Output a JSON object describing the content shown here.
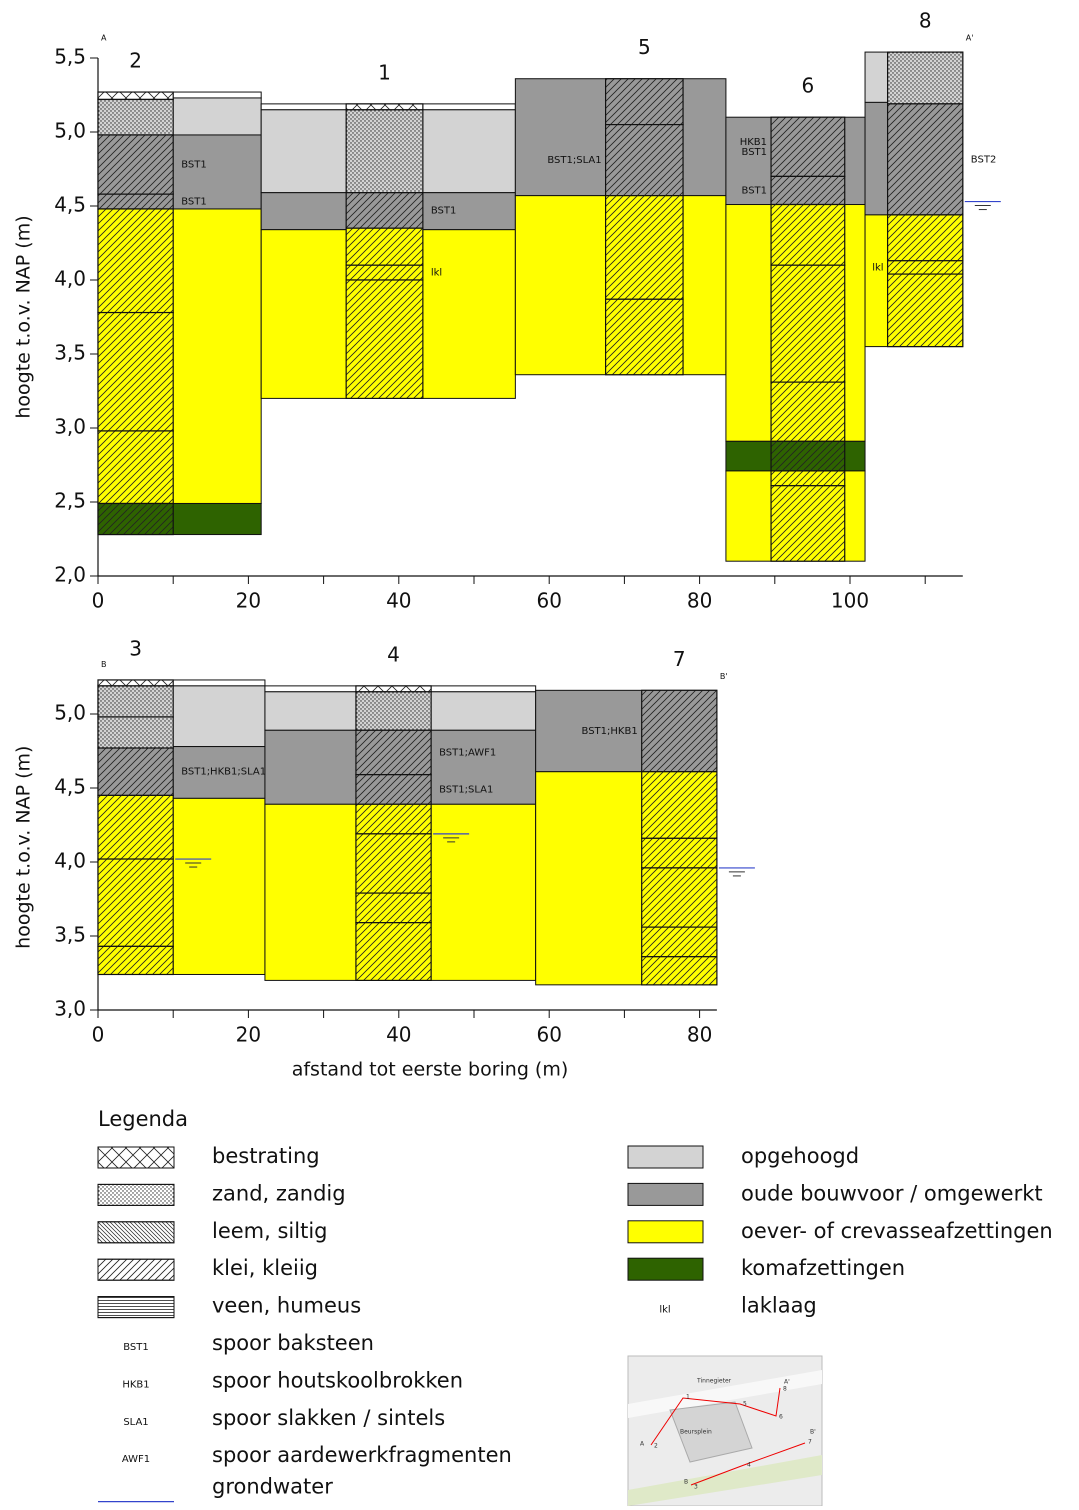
{
  "panels": [
    {
      "y_label": "hoogte t.o.v. NAP (m)",
      "section_start": "A",
      "section_end": "A'",
      "xlim": [
        0,
        115
      ],
      "ylim": [
        2.0,
        5.5
      ],
      "xticks": [
        0,
        20,
        40,
        60,
        80,
        100
      ],
      "xminor_ticks": [
        10,
        30,
        50,
        70,
        90,
        110
      ],
      "yticks": [
        {
          "value": 2.0,
          "label": "2,0"
        },
        {
          "value": 2.5,
          "label": "2,5"
        },
        {
          "value": 3.0,
          "label": "3,0"
        },
        {
          "value": 3.5,
          "label": "3,5"
        },
        {
          "value": 4.0,
          "label": "4,0"
        },
        {
          "value": 4.5,
          "label": "4,5"
        },
        {
          "value": 5.0,
          "label": "5,0"
        },
        {
          "value": 5.5,
          "label": "5,5"
        }
      ],
      "boreholes": [
        {
          "label": "2",
          "zone_x": [
            0,
            21.7
          ],
          "core_x": [
            0,
            10
          ],
          "zone": [
            {
              "unit": null,
              "top": 5.27,
              "bottom": 5.23
            },
            {
              "unit": "opgehoogd",
              "top": 5.23,
              "bottom": 4.98
            },
            {
              "unit": "oude bouwvoor / omgewerkt",
              "top": 4.98,
              "bottom": 4.48
            },
            {
              "unit": "oever- of crevasseafzettingen",
              "top": 4.48,
              "bottom": 2.49
            },
            {
              "unit": "komafzettingen",
              "top": 2.49,
              "bottom": 2.28
            }
          ],
          "core": [
            {
              "litho": "bestrating",
              "top": 5.27,
              "bottom": 5.22
            },
            {
              "litho": "zand, zandig",
              "top": 5.22,
              "bottom": 4.98
            },
            {
              "litho": "klei, kleiig",
              "top": 4.98,
              "bottom": 4.58,
              "notes": [
                "BST1"
              ]
            },
            {
              "litho": "klei, kleiig",
              "top": 4.58,
              "bottom": 4.48,
              "notes": [
                "BST1"
              ]
            },
            {
              "litho": "klei, kleiig",
              "top": 4.48,
              "bottom": 3.78
            },
            {
              "litho": "klei, kleiig",
              "top": 3.78,
              "bottom": 2.98
            },
            {
              "litho": "klei, kleiig",
              "top": 2.98,
              "bottom": 2.49
            },
            {
              "litho": "klei, kleiig",
              "top": 2.49,
              "bottom": 2.28
            }
          ]
        },
        {
          "label": "1",
          "zone_x": [
            21.7,
            55.5
          ],
          "core_x": [
            33,
            43.2
          ],
          "zone": [
            {
              "unit": null,
              "top": 5.19,
              "bottom": 5.15
            },
            {
              "unit": "opgehoogd",
              "top": 5.15,
              "bottom": 4.59
            },
            {
              "unit": "oude bouwvoor / omgewerkt",
              "top": 4.59,
              "bottom": 4.34
            },
            {
              "unit": "oever- of crevasseafzettingen",
              "top": 4.34,
              "bottom": 3.2
            }
          ],
          "core": [
            {
              "litho": "bestrating",
              "top": 5.19,
              "bottom": 5.15
            },
            {
              "litho": "zand, zandig",
              "top": 5.15,
              "bottom": 4.59
            },
            {
              "litho": "klei, kleiig",
              "top": 4.59,
              "bottom": 4.35,
              "notes": [
                "BST1"
              ]
            },
            {
              "litho": "klei, kleiig",
              "top": 4.35,
              "bottom": 4.1
            },
            {
              "litho": "klei, kleiig",
              "top": 4.1,
              "bottom": 4.0,
              "notes": [
                "lkl"
              ]
            },
            {
              "litho": "klei, kleiig",
              "top": 4.0,
              "bottom": 3.2
            }
          ]
        },
        {
          "label": "5",
          "zone_x": [
            55.5,
            83.5
          ],
          "core_x": [
            67.5,
            77.8
          ],
          "zone": [
            {
              "unit": "oude bouwvoor / omgewerkt",
              "top": 5.36,
              "bottom": 4.57
            },
            {
              "unit": "oever- of crevasseafzettingen",
              "top": 4.57,
              "bottom": 3.36
            }
          ],
          "core": [
            {
              "litho": "klei, kleiig",
              "top": 5.36,
              "bottom": 5.05
            },
            {
              "litho": "klei, kleiig",
              "top": 5.05,
              "bottom": 4.57,
              "notes": [
                "BST1;SLA1"
              ],
              "note_side": "left"
            },
            {
              "litho": "klei, kleiig",
              "top": 4.57,
              "bottom": 3.87
            },
            {
              "litho": "klei, kleiig",
              "top": 3.87,
              "bottom": 3.36
            }
          ]
        },
        {
          "label": "6",
          "zone_x": [
            83.5,
            102
          ],
          "core_x": [
            89.5,
            99.3
          ],
          "zone": [
            {
              "unit": "oude bouwvoor / omgewerkt",
              "top": 5.1,
              "bottom": 4.51
            },
            {
              "unit": "oever- of crevasseafzettingen",
              "top": 4.51,
              "bottom": 2.91
            },
            {
              "unit": "komafzettingen",
              "top": 2.91,
              "bottom": 2.71
            },
            {
              "unit": "oever- of crevasseafzettingen",
              "top": 2.71,
              "bottom": 2.1
            }
          ],
          "core": [
            {
              "litho": "klei, kleiig",
              "top": 5.1,
              "bottom": 4.7,
              "notes": [
                "HKB1",
                "BST1"
              ],
              "note_side": "left"
            },
            {
              "litho": "klei, kleiig",
              "top": 4.7,
              "bottom": 4.51,
              "notes": [
                "BST1"
              ],
              "note_side": "left"
            },
            {
              "litho": "klei, kleiig",
              "top": 4.51,
              "bottom": 4.1
            },
            {
              "litho": "klei, kleiig",
              "top": 4.1,
              "bottom": 3.31
            },
            {
              "litho": "klei, kleiig",
              "top": 3.31,
              "bottom": 2.91
            },
            {
              "litho": "klei, kleiig",
              "top": 2.91,
              "bottom": 2.71
            },
            {
              "litho": "klei, kleiig",
              "top": 2.71,
              "bottom": 2.61
            },
            {
              "litho": "klei, kleiig",
              "top": 2.61,
              "bottom": 2.1
            }
          ]
        },
        {
          "label": "8",
          "zone_x": [
            102,
            115
          ],
          "core_x": [
            105,
            115
          ],
          "groundwater": 4.53,
          "zone": [
            {
              "unit": "opgehoogd",
              "top": 5.54,
              "bottom": 5.2
            },
            {
              "unit": "oude bouwvoor / omgewerkt",
              "top": 5.2,
              "bottom": 4.44
            },
            {
              "unit": "oever- of crevasseafzettingen",
              "top": 4.44,
              "bottom": 3.55
            }
          ],
          "core": [
            {
              "litho": "zand, zandig",
              "top": 5.54,
              "bottom": 5.19
            },
            {
              "litho": "klei, kleiig",
              "top": 5.19,
              "bottom": 4.44,
              "notes": [
                "BST2"
              ]
            },
            {
              "litho": "klei, kleiig",
              "top": 4.44,
              "bottom": 4.13
            },
            {
              "litho": "klei, kleiig",
              "top": 4.13,
              "bottom": 4.04,
              "notes": [
                "lkl"
              ],
              "note_side": "left"
            },
            {
              "litho": "klei, kleiig",
              "top": 4.04,
              "bottom": 3.55
            }
          ]
        }
      ]
    },
    {
      "y_label": "hoogte t.o.v. NAP (m)",
      "x_label": "afstand tot eerste boring (m)",
      "section_start": "B",
      "section_end": "B'",
      "xlim": [
        0,
        82.3
      ],
      "ylim": [
        3.0,
        5.2
      ],
      "xticks": [
        0,
        20,
        40,
        60,
        80
      ],
      "xminor_ticks": [
        10,
        30,
        50,
        70
      ],
      "yticks": [
        {
          "value": 3.0,
          "label": "3,0"
        },
        {
          "value": 3.5,
          "label": "3,5"
        },
        {
          "value": 4.0,
          "label": "4,0"
        },
        {
          "value": 4.5,
          "label": "4,5"
        },
        {
          "value": 5.0,
          "label": "5,0"
        }
      ],
      "boreholes": [
        {
          "label": "3",
          "zone_x": [
            0,
            22.2
          ],
          "core_x": [
            0,
            10
          ],
          "groundwater": 4.02,
          "zone": [
            {
              "unit": null,
              "top": 5.23,
              "bottom": 5.19
            },
            {
              "unit": "opgehoogd",
              "top": 5.19,
              "bottom": 4.78
            },
            {
              "unit": "oude bouwvoor / omgewerkt",
              "top": 4.78,
              "bottom": 4.43
            },
            {
              "unit": "oever- of crevasseafzettingen",
              "top": 4.43,
              "bottom": 3.24
            }
          ],
          "core": [
            {
              "litho": "bestrating",
              "top": 5.23,
              "bottom": 5.19
            },
            {
              "litho": "zand, zandig",
              "top": 5.19,
              "bottom": 4.98
            },
            {
              "litho": "zand, zandig",
              "top": 4.98,
              "bottom": 4.77
            },
            {
              "litho": "klei, kleiig",
              "top": 4.77,
              "bottom": 4.45,
              "notes": [
                "BST1;HKB1;SLA1"
              ]
            },
            {
              "litho": "klei, kleiig",
              "top": 4.45,
              "bottom": 4.02
            },
            {
              "litho": "klei, kleiig",
              "top": 4.02,
              "bottom": 3.43
            },
            {
              "litho": "klei, kleiig",
              "top": 3.43,
              "bottom": 3.24
            }
          ]
        },
        {
          "label": "4",
          "zone_x": [
            22.2,
            58.2
          ],
          "core_x": [
            34.3,
            44.3
          ],
          "groundwater": 4.19,
          "zone": [
            {
              "unit": null,
              "top": 5.19,
              "bottom": 5.15
            },
            {
              "unit": "opgehoogd",
              "top": 5.15,
              "bottom": 4.89
            },
            {
              "unit": "oude bouwvoor / omgewerkt",
              "top": 4.89,
              "bottom": 4.39
            },
            {
              "unit": "oever- of crevasseafzettingen",
              "top": 4.39,
              "bottom": 3.2
            }
          ],
          "core": [
            {
              "litho": "bestrating",
              "top": 5.19,
              "bottom": 5.15
            },
            {
              "litho": "zand, zandig",
              "top": 5.15,
              "bottom": 4.89
            },
            {
              "litho": "klei, kleiig",
              "top": 4.89,
              "bottom": 4.59,
              "notes": [
                "BST1;AWF1"
              ]
            },
            {
              "litho": "klei, kleiig",
              "top": 4.59,
              "bottom": 4.39,
              "notes": [
                "BST1;SLA1"
              ]
            },
            {
              "litho": "klei, kleiig",
              "top": 4.39,
              "bottom": 4.19
            },
            {
              "litho": "klei, kleiig",
              "top": 4.19,
              "bottom": 3.79
            },
            {
              "litho": "klei, kleiig",
              "top": 3.79,
              "bottom": 3.59
            },
            {
              "litho": "klei, kleiig",
              "top": 3.59,
              "bottom": 3.2
            }
          ]
        },
        {
          "label": "7",
          "zone_x": [
            58.2,
            82.3
          ],
          "core_x": [
            72.3,
            82.3
          ],
          "groundwater": 3.96,
          "zone": [
            {
              "unit": "oude bouwvoor / omgewerkt",
              "top": 5.16,
              "bottom": 4.61
            },
            {
              "unit": "oever- of crevasseafzettingen",
              "top": 4.61,
              "bottom": 3.17
            }
          ],
          "core": [
            {
              "litho": "klei, kleiig",
              "top": 5.16,
              "bottom": 4.61,
              "notes": [
                "BST1;HKB1"
              ],
              "note_side": "left"
            },
            {
              "litho": "klei, kleiig",
              "top": 4.61,
              "bottom": 4.16
            },
            {
              "litho": "klei, kleiig",
              "top": 4.16,
              "bottom": 3.96
            },
            {
              "litho": "klei, kleiig",
              "top": 3.96,
              "bottom": 3.56
            },
            {
              "litho": "klei, kleiig",
              "top": 3.56,
              "bottom": 3.36
            },
            {
              "litho": "klei, kleiig",
              "top": 3.36,
              "bottom": 3.17
            }
          ]
        }
      ]
    }
  ],
  "legend": {
    "title": "Legenda",
    "note_color": "#e8000b",
    "lithology": [
      {
        "label": "bestrating",
        "pattern": "cross"
      },
      {
        "label": "zand, zandig",
        "pattern": "dots"
      },
      {
        "label": "leem, siltig",
        "pattern": "backslash"
      },
      {
        "label": "klei, kleiig",
        "pattern": "slash"
      },
      {
        "label": "veen, humeus",
        "pattern": "horizontal"
      }
    ],
    "traces": [
      {
        "symbol": "BST1",
        "label": "spoor baksteen"
      },
      {
        "symbol": "HKB1",
        "label": "spoor houtskoolbrokken"
      },
      {
        "symbol": "SLA1",
        "label": "spoor slakken / sintels"
      },
      {
        "symbol": "AWF1",
        "label": "spoor aardewerkfragmenten"
      }
    ],
    "groundwater": {
      "label": "grondwater",
      "color": "#3344cc"
    },
    "units": [
      {
        "label": "opgehoogd",
        "color": "#d3d3d3"
      },
      {
        "label": "oude bouwvoor / omgewerkt",
        "color": "#999999"
      },
      {
        "label": "oever- of crevasseafzettingen",
        "color": "#ffff00"
      },
      {
        "label": "komafzettingen",
        "color": "#2e6300"
      }
    ],
    "symbols": [
      {
        "symbol": "lkl",
        "label": "laklaag",
        "color": "#111111"
      }
    ]
  },
  "map": {
    "labels": [
      "Tinnegieter",
      "Beursplein",
      "A",
      "A'",
      "B",
      "B'",
      "1",
      "2",
      "3",
      "4",
      "5",
      "6",
      "7",
      "8"
    ]
  }
}
